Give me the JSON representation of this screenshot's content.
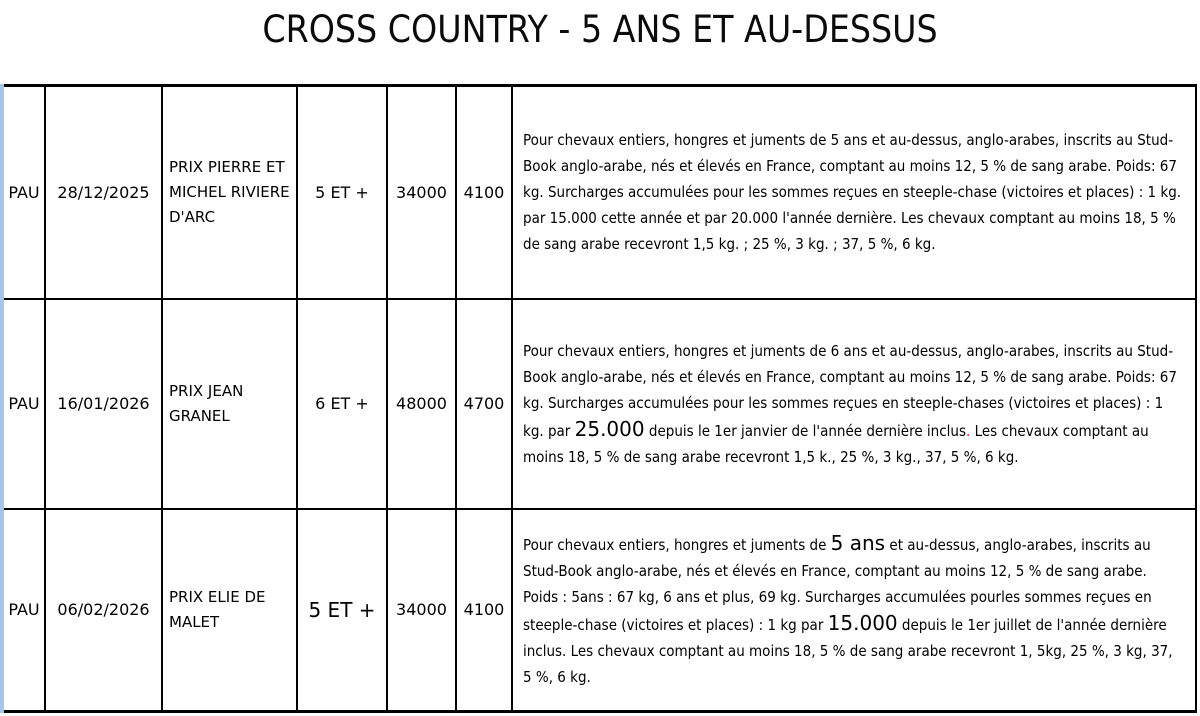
{
  "page_title": "CROSS COUNTRY - 5 ANS ET AU-DESSUS",
  "colors": {
    "table_left_edge": "#a5c6e8",
    "emphasis_red": "#dd1144",
    "text": "#000000",
    "background": "#ffffff"
  },
  "table": {
    "rows": [
      {
        "track": "PAU",
        "date": "28/12/2025",
        "race_name": "PRIX PIERRE ET MICHEL RIVIERE D'ARC",
        "age_condition": "5 ET +",
        "allocation": "34000",
        "distance": "4100",
        "conditions": [
          {
            "s": "n",
            "t": "Pour chevaux entiers, hongres et juments de 5 ans et au-dessus, anglo-arabes, inscrits au Stud-Book anglo-arabe, nés et élevés en France, comptant au moins 12, 5 % de sang arabe. Poids: 67 kg. Surcharges accumulées pour les sommes reçues en steeple-chase (victoires et places) : 1 kg. par 15.000 cette année et par 20.000 l'année dernière. Les chevaux comptant au moins 18, 5 % de sang arabe recevront 1,5 kg. ; 25 %, 3 kg. ; 37, 5 %, 6 kg."
          }
        ]
      },
      {
        "track": "PAU",
        "date": "16/01/2026",
        "race_name": "PRIX JEAN GRANEL",
        "age_condition": "6 ET +",
        "allocation": "48000",
        "distance": "4700",
        "conditions": [
          {
            "s": "n",
            "t": "Pour chevaux entiers, hongres et juments de 6 ans et au-dessus, anglo-arabes, inscrits au Stud-Book anglo-arabe, nés et élevés en France, comptant au moins 12, 5 % de sang arabe. Poids: 67 kg. Surcharges accumulées pour les sommes reçues en steeple-chases (victoires et places) : 1 kg. par "
          },
          {
            "s": "b",
            "t": "25.000"
          },
          {
            "s": "n",
            "t": " depuis le 1er janvier de l'année dernière inclus"
          },
          {
            "s": "r",
            "t": "."
          },
          {
            "s": "n",
            "t": " Les chevaux comptant au moins 18, 5 % de sang arabe recevront 1,5 k., 25 %, 3 kg., 37, 5 %, 6 kg."
          }
        ]
      },
      {
        "track": "PAU",
        "date": "06/02/2026",
        "race_name": "PRIX ELIE DE MALET",
        "age_condition": "5 ET +",
        "allocation": "34000",
        "distance": "4100",
        "conditions": [
          {
            "s": "n",
            "t": "Pour chevaux entiers, hongres et juments de "
          },
          {
            "s": "b",
            "t": "5 ans"
          },
          {
            "s": "n",
            "t": " et au-dessus, anglo-arabes, inscrits au Stud-Book anglo-arabe, nés et élevés en France, comptant au moins 12, 5 % de sang arabe. Poids : 5ans : 67 kg, 6 ans et plus, 69 kg. Surcharges accumulées pourles sommes reçues en steeple-chase (victoires et places) : 1 kg par "
          },
          {
            "s": "b",
            "t": "15.000"
          },
          {
            "s": "n",
            "t": " depuis le 1er juillet de l'année dernière inclus. Les chevaux comptant au moins 18, 5 % de sang arabe recevront 1, 5kg, 25 %, 3 kg, 37, 5 %, 6 kg."
          }
        ]
      }
    ]
  }
}
